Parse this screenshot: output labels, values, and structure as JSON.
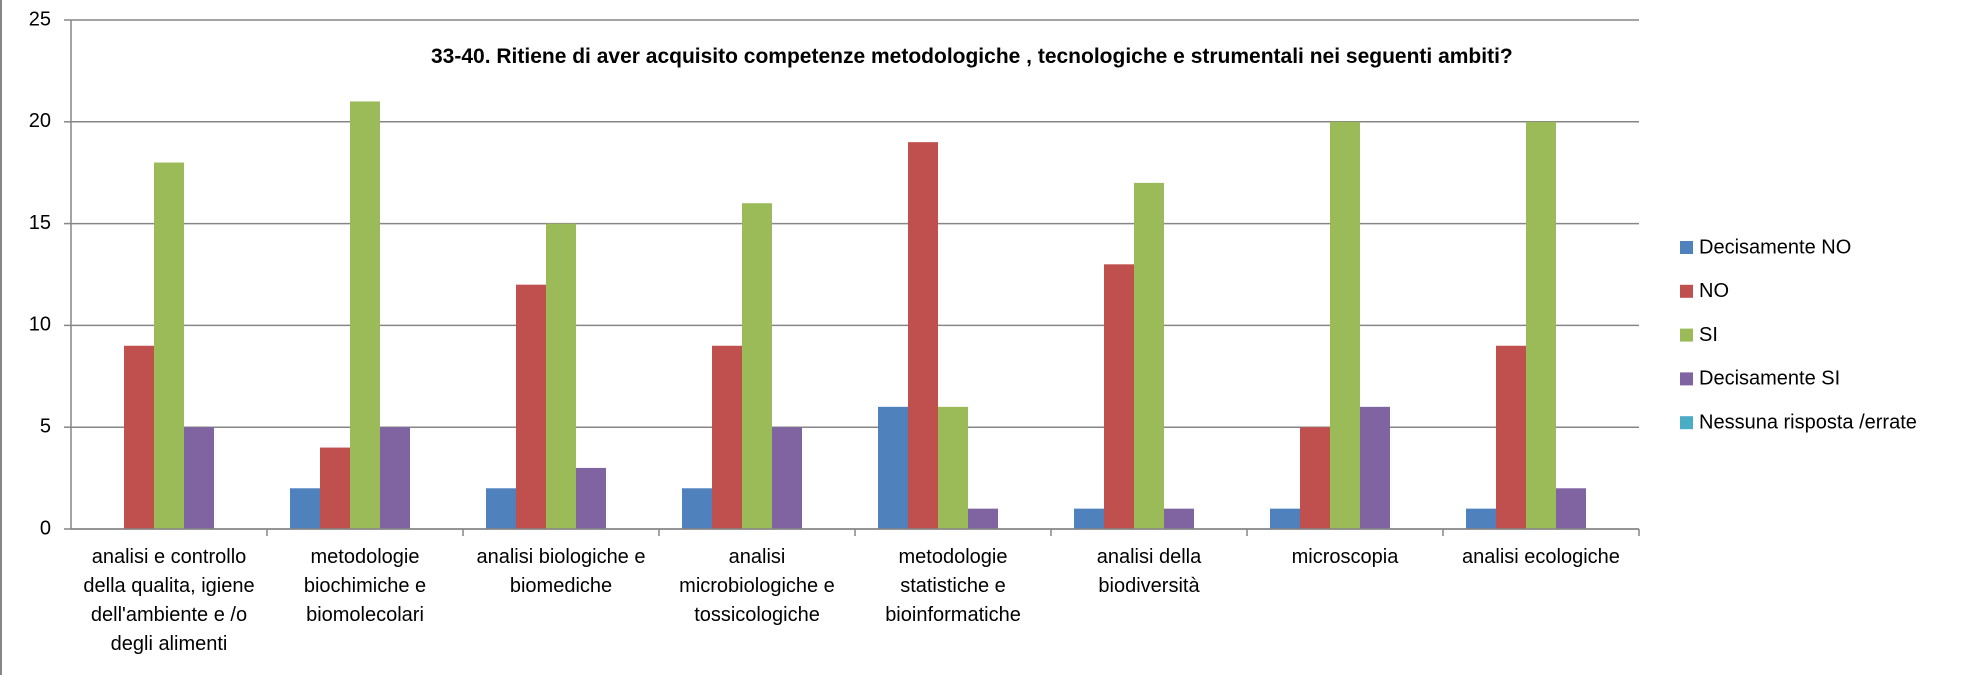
{
  "chart_data": {
    "type": "bar",
    "title": "33-40. Ritiene di aver acquisito competenze metodologiche , tecnologiche e strumentali nei seguenti ambiti?",
    "categories": [
      "analisi e controllo della qualita, igiene dell'ambiente e /o degli alimenti",
      "metodologie biochimiche e biomolecolari",
      "analisi biologiche e biomediche",
      "analisi microbiologiche e tossicologiche",
      "metodologie statistiche e bioinformatiche",
      "analisi della biodiversità",
      "microscopia",
      "analisi ecologiche"
    ],
    "series": [
      {
        "name": "Decisamente NO",
        "color": "#4f81bd",
        "values": [
          0,
          2,
          2,
          2,
          6,
          1,
          1,
          1
        ]
      },
      {
        "name": "NO",
        "color": "#c0504d",
        "values": [
          9,
          4,
          12,
          9,
          19,
          13,
          5,
          9
        ]
      },
      {
        "name": "SI",
        "color": "#9bbb59",
        "values": [
          18,
          21,
          15,
          16,
          6,
          17,
          20,
          20
        ]
      },
      {
        "name": "Decisamente SI",
        "color": "#8064a2",
        "values": [
          5,
          5,
          3,
          5,
          1,
          1,
          6,
          2
        ]
      },
      {
        "name": "Nessuna risposta /errate",
        "color": "#4bacc6",
        "values": [
          0,
          0,
          0,
          0,
          0,
          0,
          0,
          0
        ]
      }
    ],
    "ylim": [
      0,
      25
    ],
    "yticks": [
      0,
      5,
      10,
      15,
      20,
      25
    ],
    "grid": true,
    "legend": "right"
  }
}
